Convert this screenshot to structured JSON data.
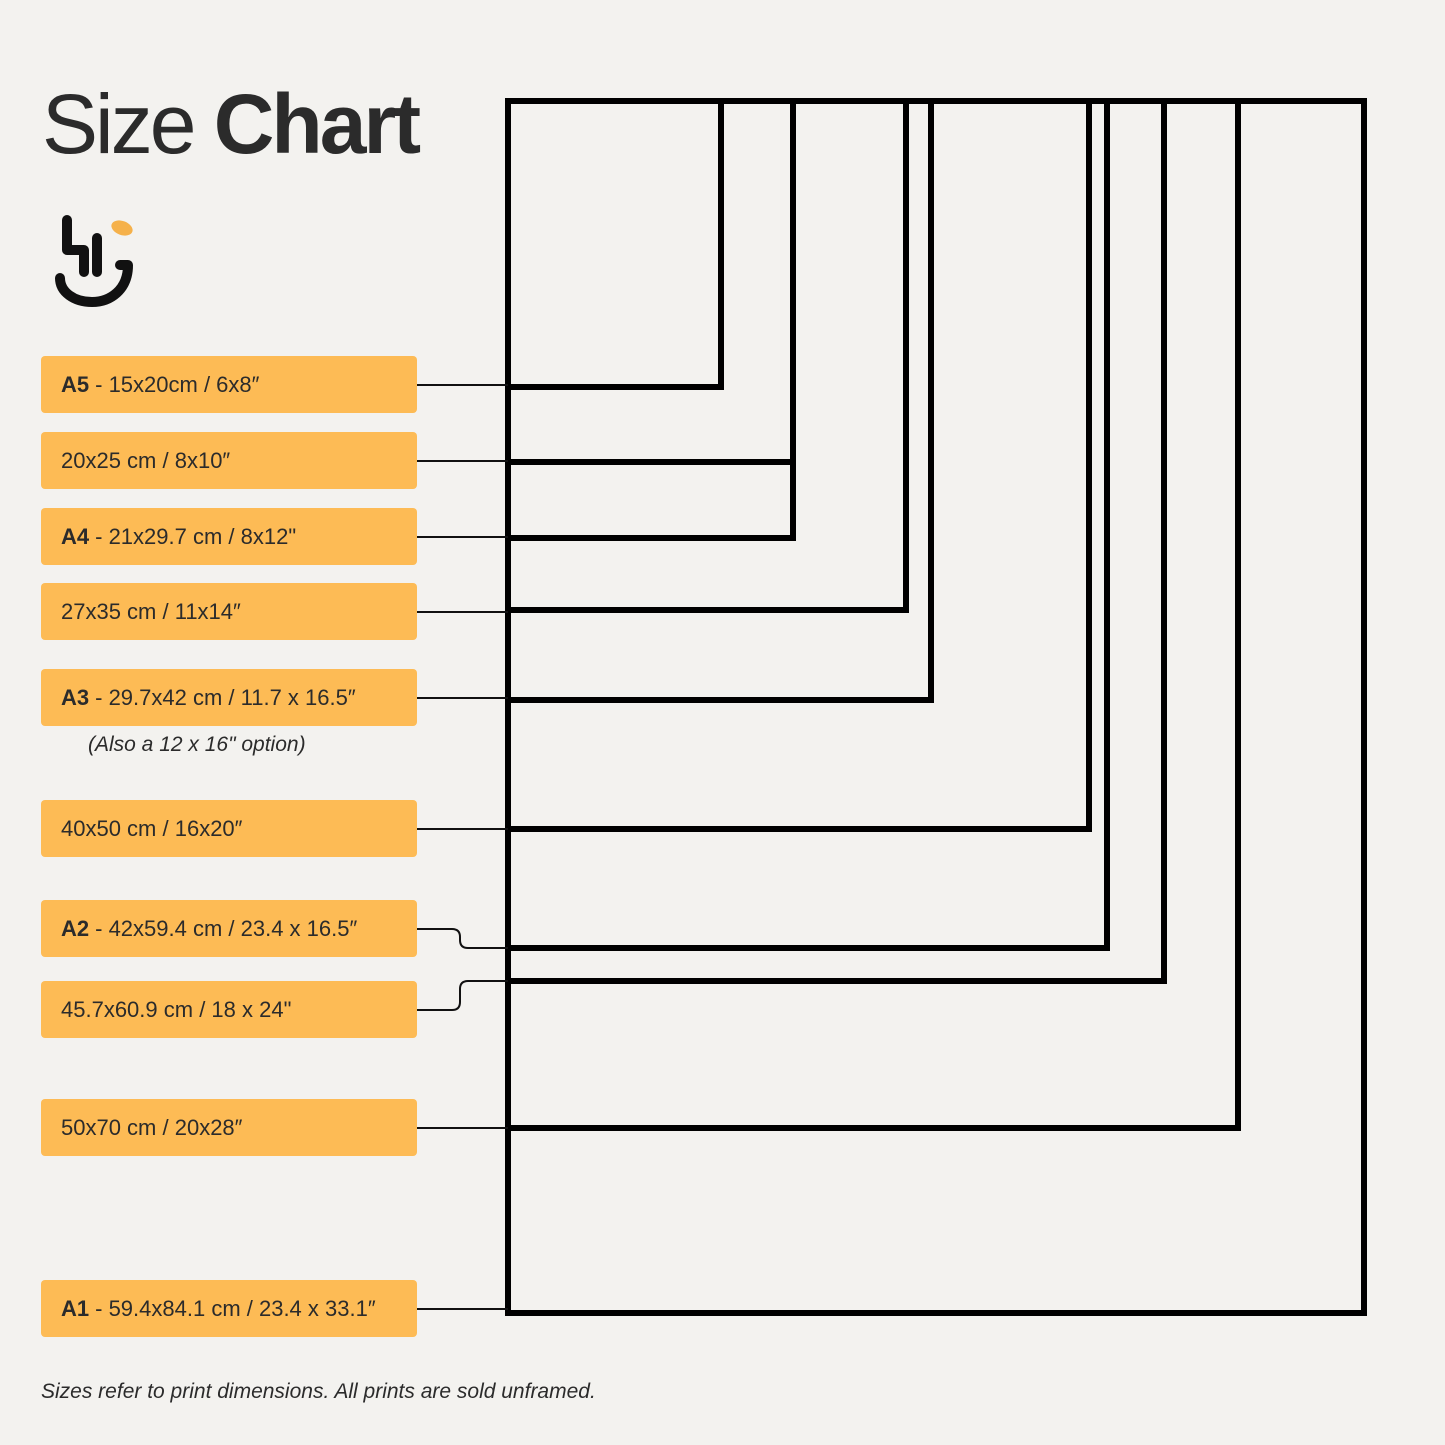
{
  "title": {
    "light": "Size",
    "bold": "Chart"
  },
  "logo": {
    "name": "brand-logo",
    "accent_color": "#f5b14a"
  },
  "colors": {
    "label_bg": "#fdbb55",
    "background": "#f3f2ef",
    "stroke": "#000000"
  },
  "sizes": [
    {
      "code": "A5",
      "text": "- 15x20cm / 6x8″"
    },
    {
      "code": "",
      "text": "20x25 cm / 8x10″"
    },
    {
      "code": "A4",
      "text": "- 21x29.7 cm / 8x12\""
    },
    {
      "code": "",
      "text": "27x35 cm / 11x14″"
    },
    {
      "code": "A3",
      "text": "- 29.7x42 cm / 11.7 x 16.5″"
    },
    {
      "code": "",
      "text": "40x50 cm / 16x20″"
    },
    {
      "code": "A2",
      "text": "- 42x59.4 cm / 23.4 x 16.5″"
    },
    {
      "code": "",
      "text": "45.7x60.9 cm / 18 x 24\""
    },
    {
      "code": "",
      "text": "50x70 cm / 20x28″"
    },
    {
      "code": "A1",
      "text": "- 59.4x84.1 cm / 23.4 x 33.1″"
    }
  ],
  "a3_note": "(Also a 12 x 16\" option)",
  "footer": "Sizes refer to print dimensions. All prints are sold unframed."
}
